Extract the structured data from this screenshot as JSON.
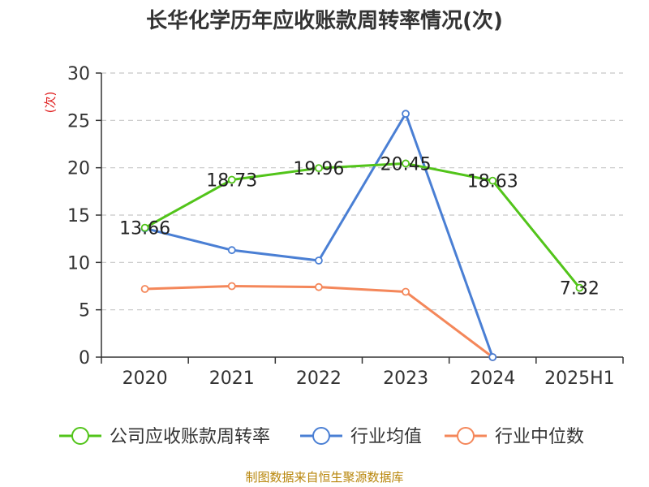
{
  "chart_data": {
    "type": "line",
    "title": "长华化学历年应收账款周转率情况(次)",
    "unit_label": "(次)",
    "categories": [
      "2020",
      "2021",
      "2022",
      "2023",
      "2024",
      "2025H1"
    ],
    "ylim": [
      0,
      30
    ],
    "yticks": [
      0,
      5,
      10,
      15,
      20,
      25,
      30
    ],
    "grid": true,
    "legend_position": "bottom",
    "series": [
      {
        "name": "公司应收账款周转率",
        "color": "#52c41a",
        "values": [
          13.66,
          18.73,
          19.96,
          20.45,
          18.63,
          7.32
        ],
        "labels": [
          "13.66",
          "18.73",
          "19.96",
          "20.45",
          "18.63",
          "7.32"
        ]
      },
      {
        "name": "行业均值",
        "color": "#4a7fd4",
        "values": [
          13.6,
          11.3,
          10.2,
          25.7,
          0,
          null
        ]
      },
      {
        "name": "行业中位数",
        "color": "#f4875a",
        "values": [
          7.2,
          7.5,
          7.4,
          6.9,
          0,
          null
        ]
      }
    ],
    "source": "制图数据来自恒生聚源数据库"
  }
}
